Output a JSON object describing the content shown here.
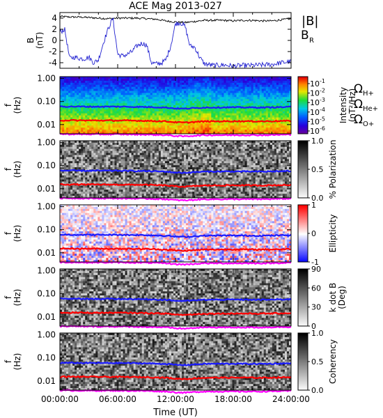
{
  "chart_data": {
    "type": "line",
    "title": "ACE Mag 2013-027",
    "x_axis": {
      "label": "Time (UT)",
      "range_hours": [
        0,
        24
      ],
      "ticks": [
        "00:00:00",
        "06:00:00",
        "12:00:00",
        "18:00:00",
        "24:00:00"
      ]
    },
    "legend_top": {
      "B_mag": {
        "text": "|B|",
        "color": "#000000"
      },
      "B_R": {
        "text": "B",
        "sub": "R",
        "color": "#2020d0"
      }
    },
    "legend_cyclotron": {
      "H": {
        "text": "Ω",
        "sub": "H+",
        "color": "#1a1aff"
      },
      "He": {
        "text": "Ω",
        "sub": "He+",
        "color": "#ff0000"
      },
      "O": {
        "text": "Ω",
        "sub": "O+",
        "color": "#ff00ff"
      }
    },
    "panels": [
      {
        "kind": "timeseries",
        "ylabel": "B",
        "yunit": "(nT)",
        "ylim": [
          -5,
          5
        ],
        "yticks": [
          "4",
          "2",
          "0",
          "-2",
          "-4"
        ],
        "series": [
          {
            "name": "|B|",
            "color": "#000000",
            "x_hours": [
              0,
              1,
              2,
              3,
              4,
              5,
              6,
              7,
              8,
              9,
              10,
              11,
              12,
              13,
              14,
              15,
              16,
              17,
              18,
              19,
              20,
              21,
              22,
              23,
              24
            ],
            "values": [
              4.3,
              4.2,
              4.2,
              4.1,
              4.0,
              3.9,
              4.0,
              4.0,
              4.0,
              3.9,
              3.8,
              3.5,
              3.3,
              3.2,
              3.4,
              3.6,
              3.6,
              3.6,
              3.5,
              3.6,
              3.6,
              3.5,
              3.5,
              3.7,
              3.9
            ]
          },
          {
            "name": "B_R",
            "color": "#2020d0",
            "x_hours": [
              0,
              0.5,
              1,
              1.5,
              2,
              2.5,
              3,
              3.5,
              4,
              4.5,
              5,
              5.5,
              6,
              6.5,
              7,
              7.5,
              8,
              8.5,
              9,
              9.5,
              10,
              10.5,
              11,
              11.5,
              12,
              12.5,
              13,
              13.5,
              14,
              14.5,
              15,
              16,
              17,
              18,
              19,
              20,
              21,
              22,
              23,
              24
            ],
            "values": [
              1.5,
              2.0,
              -3.2,
              -3.0,
              -3.2,
              -3.3,
              -3.0,
              -4.0,
              -3.5,
              -0.5,
              2.0,
              4.0,
              -2.5,
              -2.8,
              -2.5,
              -2.0,
              -1.0,
              -0.5,
              -0.8,
              -4.0,
              -4.2,
              -4.1,
              -3.5,
              -1.0,
              3.0,
              3.2,
              2.5,
              -1.0,
              -1.2,
              -3.0,
              -4.2,
              -4.5,
              -4.4,
              -4.6,
              -4.5,
              -4.5,
              -4.4,
              -4.3,
              -4.0,
              -3.8
            ]
          }
        ]
      },
      {
        "kind": "spectrogram",
        "scheme": "rainbow",
        "ylabel": "f",
        "yunit": "(Hz)",
        "ylim_log": [
          0.004,
          1.2
        ],
        "yticks": [
          "1.00",
          "0.10",
          "0.01"
        ],
        "colorbar": {
          "label_line1": "Intensity",
          "label_line2": "(nT²/Hz)",
          "tick_base": "10",
          "tick_exponents": [
            "-1",
            "-2",
            "-3",
            "-4",
            "-5",
            "-6"
          ]
        },
        "cyclotron": true
      },
      {
        "kind": "spectrogram",
        "scheme": "gray",
        "ylabel": "f",
        "yunit": "(Hz)",
        "ylim_log": [
          0.004,
          1.2
        ],
        "yticks": [
          "1.00",
          "0.10",
          "0.01"
        ],
        "colorbar": {
          "label_line1": "% Polarization",
          "label_line2": "",
          "ticks": [
            "1.0",
            "0.5",
            "0.0"
          ],
          "tick_pos": [
            0,
            0.5,
            1
          ]
        },
        "cyclotron": true
      },
      {
        "kind": "spectrogram",
        "scheme": "diverge",
        "ylabel": "f",
        "yunit": "(Hz)",
        "ylim_log": [
          0.004,
          1.2
        ],
        "yticks": [
          "1.00",
          "0.10",
          "0.01"
        ],
        "colorbar": {
          "label_line1": "Ellipticity",
          "label_line2": "",
          "ticks": [
            "1",
            "0",
            "-1"
          ],
          "tick_pos": [
            0,
            0.5,
            1
          ]
        },
        "cyclotron": true
      },
      {
        "kind": "spectrogram",
        "scheme": "gray",
        "ylabel": "f",
        "yunit": "(Hz)",
        "ylim_log": [
          0.004,
          1.2
        ],
        "yticks": [
          "1.00",
          "0.10",
          "0.01"
        ],
        "colorbar": {
          "label_line1": "k dot B",
          "label_line2": "(Deg)",
          "ticks": [
            "90",
            "60",
            "30",
            "0"
          ],
          "tick_pos": [
            0,
            0.333,
            0.667,
            1
          ]
        },
        "cyclotron": true
      },
      {
        "kind": "spectrogram",
        "scheme": "gray",
        "ylabel": "f",
        "yunit": "(Hz)",
        "ylim_log": [
          0.004,
          1.2
        ],
        "yticks": [
          "1.00",
          "0.10",
          "0.01"
        ],
        "colorbar": {
          "label_line1": "Coherency",
          "label_line2": "",
          "ticks": [
            "1.0",
            "0.5",
            "0.0"
          ],
          "tick_pos": [
            0,
            0.5,
            1
          ]
        },
        "cyclotron": true
      }
    ],
    "cyclotron_lines_hz": {
      "H+": {
        "color": "#1a1aff",
        "x_hours": [
          0,
          3,
          6,
          9,
          11,
          12,
          13,
          14,
          15,
          18,
          21,
          24
        ],
        "values": [
          0.061,
          0.06,
          0.06,
          0.058,
          0.055,
          0.05,
          0.049,
          0.052,
          0.055,
          0.056,
          0.055,
          0.058
        ]
      },
      "He+": {
        "color": "#ff0000",
        "x_hours": [
          0,
          3,
          6,
          9,
          11,
          12,
          13,
          14,
          15,
          18,
          21,
          24
        ],
        "values": [
          0.0153,
          0.0151,
          0.015,
          0.0146,
          0.0138,
          0.0126,
          0.0122,
          0.013,
          0.0137,
          0.014,
          0.0138,
          0.0145
        ]
      },
      "O+": {
        "color": "#ff00ff",
        "x_hours": [
          0,
          3,
          6,
          9,
          11,
          12,
          13,
          14,
          15,
          18,
          21,
          24
        ],
        "values": [
          0.0039,
          0.0038,
          0.0038,
          0.0037,
          0.0035,
          0.0032,
          0.0031,
          0.0033,
          0.0035,
          0.0035,
          0.0035,
          0.0037
        ]
      }
    }
  }
}
